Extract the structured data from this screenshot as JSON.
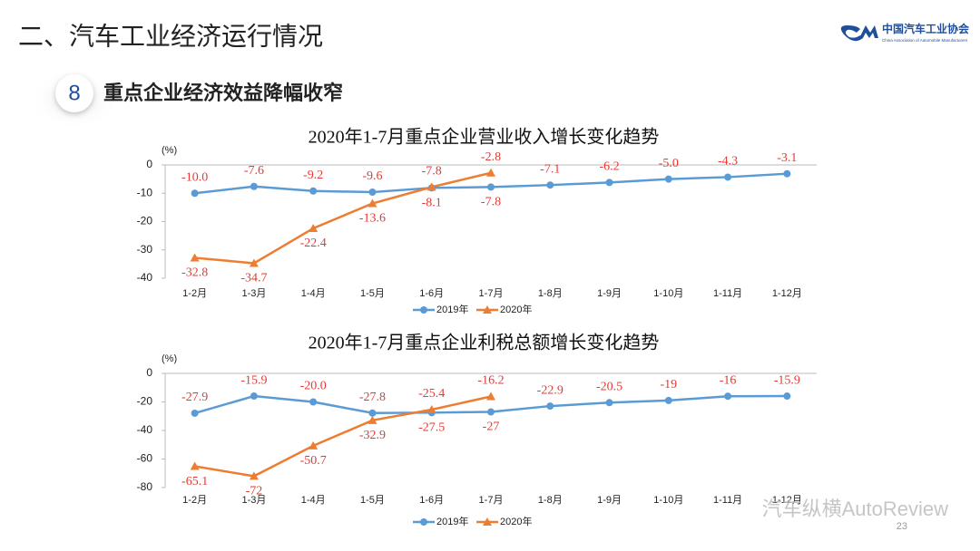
{
  "header": {
    "title": "二、汽车工业经济运行情况"
  },
  "logo": {
    "name": "中国汽车工业协会",
    "subtitle": "China Association of Automobile Manufacturers"
  },
  "section": {
    "number": "8",
    "title": "重点企业经济效益降幅收窄"
  },
  "page_number": "23",
  "watermark": "汽车纵横AutoReview",
  "chart_data": [
    {
      "type": "line",
      "title": "2020年1-7月重点企业营业收入增长变化趋势",
      "unit": "(%)",
      "categories": [
        "1-2月",
        "1-3月",
        "1-4月",
        "1-5月",
        "1-6月",
        "1-7月",
        "1-8月",
        "1-9月",
        "1-10月",
        "1-11月",
        "1-12月"
      ],
      "series": [
        {
          "name": "2019年",
          "color": "#5b9bd5",
          "marker": "circle",
          "values": [
            -10.0,
            -7.6,
            -9.2,
            -9.6,
            -8.1,
            -7.8,
            -7.1,
            -6.2,
            -5.0,
            -4.3,
            -3.1
          ],
          "value_labels": [
            "-10.0",
            "-7.6",
            "-9.2",
            "-9.6",
            "-8.1",
            "-7.8",
            "-7.1",
            "-6.2",
            "-5.0",
            "-4.3",
            "-3.1"
          ]
        },
        {
          "name": "2020年",
          "color": "#ed7d31",
          "marker": "triangle",
          "values": [
            -32.8,
            -34.7,
            -22.4,
            -13.6,
            -7.8,
            -2.8,
            null,
            null,
            null,
            null,
            null
          ],
          "value_labels": [
            "-32.8",
            "-34.7",
            "-22.4",
            "-13.6",
            "-7.8",
            "-2.8",
            null,
            null,
            null,
            null,
            null
          ]
        }
      ],
      "ylim": [
        -40,
        0
      ],
      "yticks": [
        0,
        -10,
        -20,
        -30,
        -40
      ],
      "label_color": "#e53935"
    },
    {
      "type": "line",
      "title": "2020年1-7月重点企业利税总额增长变化趋势",
      "unit": "(%)",
      "categories": [
        "1-2月",
        "1-3月",
        "1-4月",
        "1-5月",
        "1-6月",
        "1-7月",
        "1-8月",
        "1-9月",
        "1-10月",
        "1-11月",
        "1-12月"
      ],
      "series": [
        {
          "name": "2019年",
          "color": "#5b9bd5",
          "marker": "circle",
          "values": [
            -27.9,
            -15.9,
            -20.0,
            -27.8,
            -27.5,
            -27,
            -22.9,
            -20.5,
            -19,
            -16,
            -15.9
          ],
          "value_labels": [
            "-27.9",
            "-15.9",
            "-20.0",
            "-27.8",
            "-27.5",
            "-27",
            "-22.9",
            "-20.5",
            "-19",
            "-16",
            "-15.9"
          ]
        },
        {
          "name": "2020年",
          "color": "#ed7d31",
          "marker": "triangle",
          "values": [
            -65.1,
            -72,
            -50.7,
            -32.9,
            -25.4,
            -16.2,
            null,
            null,
            null,
            null,
            null
          ],
          "value_labels": [
            "-65.1",
            "-72",
            "-50.7",
            "-32.9",
            "-25.4",
            "-16.2",
            null,
            null,
            null,
            null,
            null
          ]
        }
      ],
      "ylim": [
        -80,
        0
      ],
      "yticks": [
        0,
        -20,
        -40,
        -60,
        -80
      ],
      "label_color": "#e53935"
    }
  ]
}
